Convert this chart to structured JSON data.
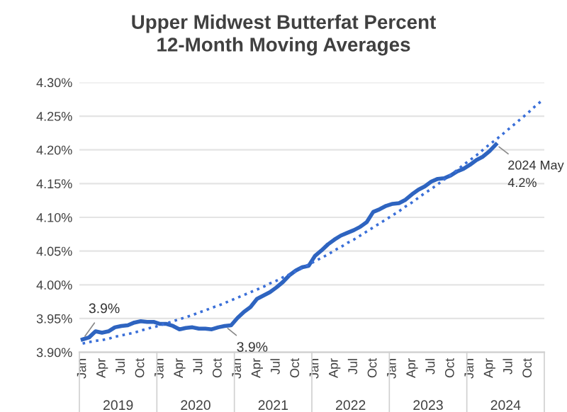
{
  "chart_data": {
    "type": "line",
    "title": "Upper Midwest Butterfat Percent\n12-Month Moving Averages",
    "categories": [
      "Jan",
      null,
      null,
      "Apr",
      null,
      null,
      "Jul",
      null,
      null,
      "Oct",
      null,
      null,
      "Jan",
      null,
      null,
      "Apr",
      null,
      null,
      "Jul",
      null,
      null,
      "Oct",
      null,
      null,
      "Jan",
      null,
      null,
      "Apr",
      null,
      null,
      "Jul",
      null,
      null,
      "Oct",
      null,
      null,
      "Jan",
      null,
      null,
      "Apr",
      null,
      null,
      "Jul",
      null,
      null,
      "Oct",
      null,
      null,
      "Jan",
      null,
      null,
      "Apr",
      null,
      null,
      "Jul",
      null,
      null,
      "Oct",
      null,
      null,
      "Jan",
      null,
      null,
      "Apr",
      null,
      null,
      "Jul",
      null,
      null,
      "Oct",
      null,
      null
    ],
    "series": [
      {
        "color": "#2e64c0",
        "line_style": "solid",
        "values": [
          3.919,
          3.922,
          3.931,
          3.929,
          3.931,
          3.937,
          3.939,
          3.94,
          3.944,
          3.946,
          3.945,
          3.945,
          3.942,
          3.942,
          3.939,
          3.934,
          3.936,
          3.937,
          3.935,
          3.935,
          3.934,
          3.937,
          3.939,
          3.94,
          3.951,
          3.96,
          3.967,
          3.979,
          3.984,
          3.989,
          3.996,
          4.004,
          4.014,
          4.021,
          4.026,
          4.028,
          4.043,
          4.051,
          4.06,
          4.067,
          4.073,
          4.077,
          4.081,
          4.086,
          4.093,
          4.108,
          4.112,
          4.117,
          4.12,
          4.121,
          4.126,
          4.134,
          4.141,
          4.146,
          4.153,
          4.157,
          4.158,
          4.162,
          4.168,
          4.172,
          4.178,
          4.185,
          4.19,
          4.198,
          4.208,
          null,
          null,
          null,
          null,
          null,
          null,
          null
        ],
        "value_labels": [
          "3.9%",
          null,
          null,
          null,
          null,
          null,
          null,
          null,
          null,
          null,
          null,
          null,
          null,
          null,
          null,
          null,
          null,
          null,
          null,
          null,
          null,
          null,
          "3.9%",
          null,
          null,
          null,
          null,
          null,
          null,
          null,
          null,
          null,
          null,
          null,
          null,
          null,
          null,
          null,
          null,
          null,
          null,
          null,
          null,
          null,
          null,
          null,
          null,
          null,
          null,
          null,
          null,
          null,
          null,
          null,
          null,
          null,
          null,
          null,
          null,
          null,
          null,
          null,
          null,
          null,
          "2024 May\n4.2%",
          null,
          null,
          null,
          null,
          null,
          null,
          null
        ]
      },
      {
        "color": "#3a6fd8",
        "line_style": "dotted",
        "values": [
          3.913,
          3.915,
          3.917,
          3.918,
          3.92,
          3.923,
          3.925,
          3.927,
          3.929,
          3.932,
          3.935,
          3.937,
          3.94,
          3.943,
          3.946,
          3.949,
          3.952,
          3.955,
          3.959,
          3.962,
          3.966,
          3.969,
          3.973,
          3.977,
          3.981,
          3.985,
          3.989,
          3.993,
          3.997,
          4.002,
          4.006,
          4.011,
          4.015,
          4.02,
          4.025,
          4.03,
          4.035,
          4.04,
          4.045,
          4.051,
          4.056,
          4.062,
          4.067,
          4.073,
          4.079,
          4.085,
          4.091,
          4.097,
          4.103,
          4.109,
          4.116,
          4.122,
          4.129,
          4.136,
          4.142,
          4.149,
          4.156,
          4.163,
          4.17,
          4.178,
          4.185,
          4.192,
          4.2,
          4.208,
          4.215,
          4.223,
          4.231,
          4.239,
          4.247,
          4.255,
          4.264,
          4.272
        ]
      }
    ],
    "ylim": [
      3.9,
      4.3
    ],
    "yticks": [
      {
        "value": 3.9,
        "label": "3.90%"
      },
      {
        "value": 3.95,
        "label": "3.95%"
      },
      {
        "value": 4.0,
        "label": "4.00%"
      },
      {
        "value": 4.05,
        "label": "4.05%"
      },
      {
        "value": 4.1,
        "label": "4.10%"
      },
      {
        "value": 4.15,
        "label": "4.15%"
      },
      {
        "value": 4.2,
        "label": "4.20%"
      },
      {
        "value": 4.25,
        "label": "4.25%"
      },
      {
        "value": 4.3,
        "label": "4.30%"
      }
    ],
    "grid": "y",
    "annotations": [
      "2019",
      "2020",
      "2021",
      "2022",
      "2023",
      "2024"
    ]
  }
}
